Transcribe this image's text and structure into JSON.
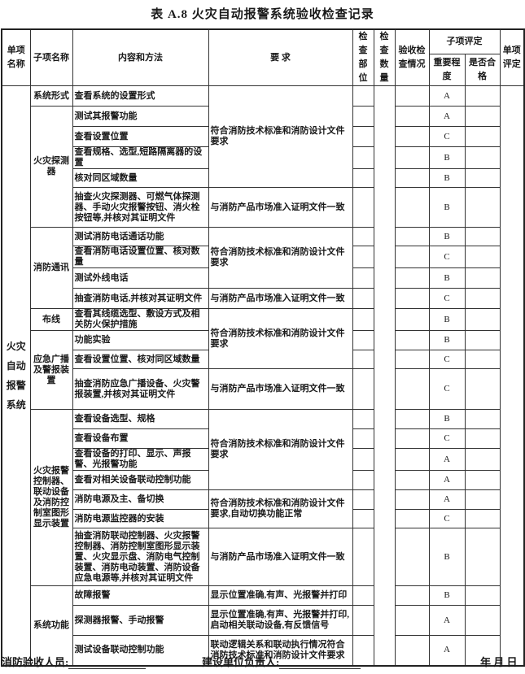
{
  "title": "表 A.8  火灾自动报警系统验收检查记录",
  "headers": {
    "item_name": "单项名称",
    "sub_name": "子项名称",
    "content": "内容和方法",
    "requirement": "要 求",
    "check_location": "检查部位",
    "check_quantity": "检查数量",
    "acceptance": "验收检查情况",
    "sub_eval": "子项评定",
    "importance": "重要程度",
    "qualified": "是否合格",
    "item_eval": "单项评定"
  },
  "item": "火灾自动报警系统",
  "groups": [
    {
      "name": "系统形式",
      "rows": [
        {
          "content": "查看系统的设置形式",
          "grade": "A"
        }
      ]
    },
    {
      "name": "火灾探测器",
      "rows": [
        {
          "content": "测试其报警功能",
          "grade": "A"
        },
        {
          "content": "查看设置位置",
          "grade": "C"
        },
        {
          "content": "查看规格、选型,短路隔离器的设置",
          "grade": "B"
        },
        {
          "content": "核对同区域数量",
          "grade": "B"
        },
        {
          "content": "抽查火灾探测器、可燃气体探测器、手动火灾报警按钮、消火栓按钮等,并核对其证明文件",
          "grade": "B"
        }
      ]
    },
    {
      "name": "消防通讯",
      "rows": [
        {
          "content": "测试消防电话通话功能",
          "grade": "B"
        },
        {
          "content": "查看消防电话设置位置、核对数量",
          "grade": "C"
        },
        {
          "content": "测试外线电话",
          "grade": "B"
        },
        {
          "content": "抽查消防电话,并核对其证明文件",
          "grade": "C"
        }
      ]
    },
    {
      "name": "布线",
      "rows": [
        {
          "content": "查看其线缆选型、敷设方式及相关防火保护措施",
          "grade": "B"
        }
      ]
    },
    {
      "name": "应急广播及警报装置",
      "rows": [
        {
          "content": "功能实验",
          "grade": "B"
        },
        {
          "content": "查看设置位置、核对同区域数量",
          "grade": "C"
        },
        {
          "content": "抽查消防应急广播设备、火灾警报装置,并核对其证明文件",
          "grade": "C"
        }
      ]
    },
    {
      "name": "火灾报警控制器、联动设备及消防控制室图形显示装置",
      "rows": [
        {
          "content": "查看设备选型、规格",
          "grade": "B"
        },
        {
          "content": "查看设备布置",
          "grade": "C"
        },
        {
          "content": "查看设备的打印、显示、声报警、光报警功能",
          "grade": "A"
        },
        {
          "content": "查看对相关设备联动控制功能",
          "grade": "A"
        },
        {
          "content": "消防电源及主、备切换",
          "grade": "A"
        },
        {
          "content": "消防电源监控器的安装",
          "grade": "C"
        },
        {
          "content": "抽查消防联动控制器、火灾报警控制器、消防控制室图形显示装置、火灾显示盘、消防电气控制装置、消防电动装置、消防设备应急电源等,并核对其证明文件",
          "grade": "B"
        }
      ]
    },
    {
      "name": "系统功能",
      "rows": [
        {
          "content": "故障报警",
          "grade": "B"
        },
        {
          "content": "探测器报警、手动报警",
          "grade": "A"
        },
        {
          "content": "测试设备联动控制功能",
          "grade": "A"
        }
      ]
    }
  ],
  "requirements": [
    {
      "text": "符合消防技术标准和消防设计文件要求",
      "span": 5
    },
    {
      "text": "与消防产品市场准入证明文件一致",
      "span": 1
    },
    {
      "text": "符合消防技术标准和消防设计文件要求",
      "span": 3
    },
    {
      "text": "与消防产品市场准入证明文件一致",
      "span": 1
    },
    {
      "text": "符合消防技术标准和消防设计文件要求",
      "span": 3
    },
    {
      "text": "与消防产品市场准入证明文件一致",
      "span": 1
    },
    {
      "text": "符合消防技术标准和消防设计文件要求",
      "span": 4
    },
    {
      "text": "符合消防技术标准和消防设计文件要求,自动切换功能正常",
      "span": 2
    },
    {
      "text": "与消防产品市场准入证明文件一致",
      "span": 1
    },
    {
      "text": "显示位置准确,有声、光报警并打印",
      "span": 1
    },
    {
      "text": "显示位置准确,有声、光报警并打印,启动相关联动设备,有反馈信号",
      "span": 1
    },
    {
      "text": "联动逻辑关系和联动执行情况符合消防技术标准和消防设计文件要求",
      "span": 1
    }
  ],
  "footer": {
    "inspector": "消防验收人员:",
    "owner": "建设单位负责人:",
    "date": "年  月  日"
  }
}
